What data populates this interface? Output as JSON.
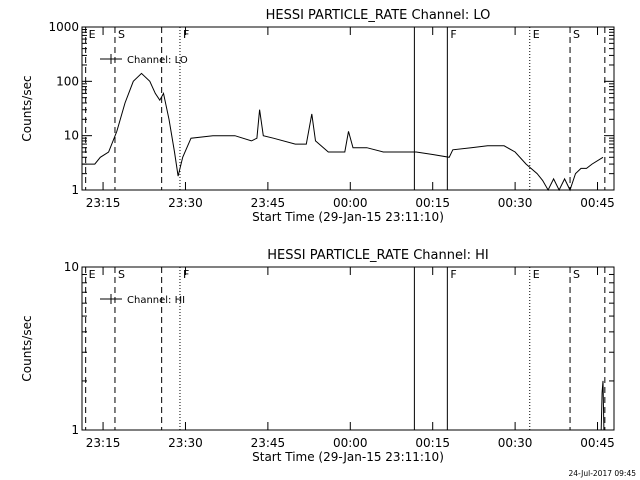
{
  "chart_data": [
    {
      "type": "line",
      "title": "HESSI PARTICLE_RATE Channel: LO",
      "xlabel": "Start Time (29-Jan-15 23:11:10)",
      "ylabel": "Counts/sec",
      "y_scale": "log",
      "xlim": [
        "23:11:10",
        "00:48:00"
      ],
      "ylim": [
        1,
        1000
      ],
      "x_ticks": [
        "23:15",
        "23:30",
        "23:45",
        "00:00",
        "00:15",
        "00:30",
        "00:45"
      ],
      "y_ticks": [
        "1",
        "10",
        "100",
        "1000"
      ],
      "grid": false,
      "legend": {
        "position": "top-left",
        "entries": [
          "Channel: LO"
        ]
      },
      "markers": [
        {
          "time": "23:11:50",
          "label": "E",
          "style": "dashed"
        },
        {
          "time": "23:17:10",
          "label": "S",
          "style": "dashed"
        },
        {
          "time": "23:25:40",
          "label": "",
          "style": "dashed"
        },
        {
          "time": "23:29:00",
          "label": "F",
          "style": "dotted"
        },
        {
          "time": "00:11:40",
          "label": "",
          "style": "solid"
        },
        {
          "time": "00:17:40",
          "label": "F",
          "style": "solid"
        },
        {
          "time": "00:32:40",
          "label": "E",
          "style": "dotted"
        },
        {
          "time": "00:46:20",
          "label": "",
          "style": "dashed"
        },
        {
          "time": "00:40:00",
          "label": "S",
          "style": "dashed"
        }
      ],
      "series": [
        {
          "name": "Channel: LO",
          "points": [
            [
              "23:11:10",
              3
            ],
            [
              "23:13:30",
              3
            ],
            [
              "23:14:30",
              4
            ],
            [
              "23:16:00",
              5
            ],
            [
              "23:17:30",
              12
            ],
            [
              "23:19:00",
              40
            ],
            [
              "23:20:30",
              100
            ],
            [
              "23:22:00",
              140
            ],
            [
              "23:23:30",
              100
            ],
            [
              "23:24:30",
              60
            ],
            [
              "23:25:20",
              45
            ],
            [
              "23:26:00",
              60
            ],
            [
              "23:27:00",
              20
            ],
            [
              "23:28:00",
              5
            ],
            [
              "23:28:40",
              1.8
            ],
            [
              "23:29:30",
              4
            ],
            [
              "23:31:00",
              9
            ],
            [
              "23:35:00",
              10
            ],
            [
              "23:39:00",
              10
            ],
            [
              "23:42:00",
              8
            ],
            [
              "23:43:00",
              9
            ],
            [
              "23:43:30",
              30
            ],
            [
              "23:44:10",
              10
            ],
            [
              "23:46:00",
              9
            ],
            [
              "23:50:00",
              7
            ],
            [
              "23:52:00",
              7
            ],
            [
              "23:53:00",
              25
            ],
            [
              "23:53:40",
              8
            ],
            [
              "23:56:00",
              5
            ],
            [
              "23:59:00",
              5
            ],
            [
              "23:59:40",
              12
            ],
            [
              "00:00:30",
              6
            ],
            [
              "00:03:00",
              6
            ],
            [
              "00:06:00",
              5
            ],
            [
              "00:09:00",
              5
            ],
            [
              "00:12:00",
              5
            ],
            [
              "00:15:00",
              4.5
            ],
            [
              "00:18:00",
              4
            ],
            [
              "00:18:40",
              5.5
            ],
            [
              "00:22:00",
              6
            ],
            [
              "00:25:00",
              6.5
            ],
            [
              "00:28:00",
              6.5
            ],
            [
              "00:30:00",
              5
            ],
            [
              "00:32:00",
              3
            ],
            [
              "00:34:00",
              2
            ],
            [
              "00:35:00",
              1.5
            ],
            [
              "00:36:00",
              1
            ],
            [
              "00:37:00",
              1.6
            ],
            [
              "00:38:00",
              1
            ],
            [
              "00:39:00",
              1.6
            ],
            [
              "00:40:00",
              1
            ],
            [
              "00:41:00",
              2
            ],
            [
              "00:42:00",
              2.5
            ],
            [
              "00:43:00",
              2.5
            ],
            [
              "00:44:00",
              3
            ],
            [
              "00:46:00",
              4
            ]
          ]
        }
      ]
    },
    {
      "type": "line",
      "title": "HESSI PARTICLE_RATE Channel: HI",
      "xlabel": "Start Time (29-Jan-15 23:11:10)",
      "ylabel": "Counts/sec",
      "y_scale": "log",
      "xlim": [
        "23:11:10",
        "00:48:00"
      ],
      "ylim": [
        1,
        10
      ],
      "x_ticks": [
        "23:15",
        "23:30",
        "23:45",
        "00:00",
        "00:15",
        "00:30",
        "00:45"
      ],
      "y_ticks": [
        "1",
        "10"
      ],
      "grid": false,
      "legend": {
        "position": "top-left",
        "entries": [
          "Channel: HI"
        ]
      },
      "markers": [
        {
          "time": "23:11:50",
          "label": "E",
          "style": "dashed"
        },
        {
          "time": "23:17:10",
          "label": "S",
          "style": "dashed"
        },
        {
          "time": "23:25:40",
          "label": "",
          "style": "dashed"
        },
        {
          "time": "23:29:00",
          "label": "F",
          "style": "dotted"
        },
        {
          "time": "00:11:40",
          "label": "",
          "style": "solid"
        },
        {
          "time": "00:17:40",
          "label": "F",
          "style": "solid"
        },
        {
          "time": "00:32:40",
          "label": "E",
          "style": "dotted"
        },
        {
          "time": "00:46:20",
          "label": "",
          "style": "dashed"
        },
        {
          "time": "00:40:00",
          "label": "S",
          "style": "dashed"
        }
      ],
      "series": [
        {
          "name": "Channel: HI",
          "points": [
            [
              "00:45:40",
              1
            ],
            [
              "00:45:50",
              1.7
            ],
            [
              "00:46:00",
              2.0
            ],
            [
              "00:46:10",
              1
            ]
          ]
        }
      ]
    }
  ],
  "footer": {
    "timestamp": "24-Jul-2017 09:45"
  }
}
